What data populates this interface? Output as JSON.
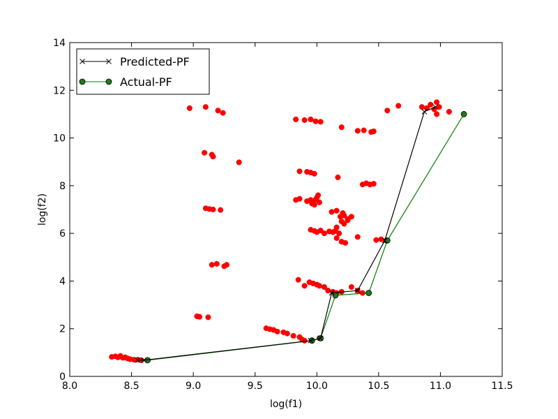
{
  "chart_data": {
    "type": "scatter",
    "title": "",
    "xlabel": "log(f1)",
    "ylabel": "log(f2)",
    "xlim": [
      8.0,
      11.5
    ],
    "ylim": [
      0,
      14
    ],
    "xticks": [
      "8.0",
      "8.5",
      "9.0",
      "9.5",
      "10.0",
      "10.5",
      "11.0",
      "11.5"
    ],
    "yticks": [
      "0",
      "2",
      "4",
      "6",
      "8",
      "10",
      "12",
      "14"
    ],
    "grid": false,
    "legend_position": "top-left",
    "colors": {
      "scatter": "#ff0000",
      "predicted": "#000000",
      "actual": "#007f00",
      "actual_marker": "#1f7a1f"
    },
    "series": [
      {
        "name": "Predicted-PF",
        "style": "line-x-marker",
        "points": [
          [
            8.55,
            0.68
          ],
          [
            8.6,
            0.68
          ],
          [
            9.95,
            1.5
          ],
          [
            10.03,
            1.6
          ],
          [
            10.12,
            3.5
          ],
          [
            10.33,
            3.6
          ],
          [
            10.55,
            5.7
          ],
          [
            10.87,
            11.1
          ],
          [
            10.96,
            11.3
          ]
        ]
      },
      {
        "name": "Actual-PF",
        "style": "line-circle-marker",
        "points": [
          [
            8.63,
            0.68
          ],
          [
            9.96,
            1.5
          ],
          [
            10.03,
            1.6
          ],
          [
            10.15,
            3.4
          ],
          [
            10.42,
            3.5
          ],
          [
            10.57,
            5.7
          ],
          [
            11.19,
            11.0
          ]
        ]
      },
      {
        "name": "",
        "style": "scatter",
        "points": [
          [
            8.34,
            0.82
          ],
          [
            8.37,
            0.84
          ],
          [
            8.39,
            0.8
          ],
          [
            8.41,
            0.86
          ],
          [
            8.43,
            0.78
          ],
          [
            8.45,
            0.8
          ],
          [
            8.47,
            0.75
          ],
          [
            8.49,
            0.72
          ],
          [
            8.52,
            0.7
          ],
          [
            8.55,
            0.7
          ],
          [
            8.58,
            0.68
          ],
          [
            9.03,
            2.52
          ],
          [
            9.05,
            2.5
          ],
          [
            9.12,
            2.48
          ],
          [
            9.15,
            4.68
          ],
          [
            9.19,
            4.72
          ],
          [
            9.25,
            4.62
          ],
          [
            9.27,
            4.68
          ],
          [
            9.1,
            7.05
          ],
          [
            9.13,
            7.02
          ],
          [
            9.16,
            7.0
          ],
          [
            9.22,
            6.98
          ],
          [
            9.09,
            9.38
          ],
          [
            9.15,
            9.3
          ],
          [
            9.16,
            9.22
          ],
          [
            9.37,
            8.98
          ],
          [
            8.97,
            11.25
          ],
          [
            9.1,
            11.3
          ],
          [
            9.2,
            11.15
          ],
          [
            9.24,
            11.05
          ],
          [
            9.59,
            2.02
          ],
          [
            9.62,
            1.98
          ],
          [
            9.65,
            1.95
          ],
          [
            9.68,
            1.88
          ],
          [
            9.73,
            1.85
          ],
          [
            9.76,
            1.8
          ],
          [
            9.81,
            1.7
          ],
          [
            9.86,
            1.65
          ],
          [
            9.88,
            1.55
          ],
          [
            9.9,
            1.5
          ],
          [
            9.96,
            1.52
          ],
          [
            10.02,
            1.6
          ],
          [
            9.85,
            4.05
          ],
          [
            9.9,
            3.8
          ],
          [
            9.94,
            3.95
          ],
          [
            9.97,
            3.9
          ],
          [
            10.0,
            3.85
          ],
          [
            10.02,
            3.8
          ],
          [
            10.06,
            3.75
          ],
          [
            10.09,
            3.6
          ],
          [
            10.13,
            3.55
          ],
          [
            10.16,
            3.5
          ],
          [
            10.2,
            3.55
          ],
          [
            10.28,
            3.75
          ],
          [
            10.33,
            3.6
          ],
          [
            10.37,
            3.5
          ],
          [
            10.16,
            5.8
          ],
          [
            10.2,
            5.65
          ],
          [
            10.23,
            5.6
          ],
          [
            10.33,
            5.85
          ],
          [
            10.48,
            5.72
          ],
          [
            10.52,
            5.75
          ],
          [
            10.56,
            5.7
          ],
          [
            9.95,
            6.15
          ],
          [
            9.98,
            6.1
          ],
          [
            10.0,
            6.05
          ],
          [
            10.03,
            6.12
          ],
          [
            10.06,
            6.0
          ],
          [
            10.1,
            6.08
          ],
          [
            10.13,
            6.05
          ],
          [
            10.15,
            6.1
          ],
          [
            10.18,
            6.0
          ],
          [
            10.16,
            6.25
          ],
          [
            10.2,
            6.5
          ],
          [
            10.22,
            6.4
          ],
          [
            10.25,
            6.55
          ],
          [
            10.12,
            6.9
          ],
          [
            10.16,
            6.95
          ],
          [
            10.19,
            6.7
          ],
          [
            10.22,
            6.75
          ],
          [
            10.25,
            6.6
          ],
          [
            10.28,
            6.7
          ],
          [
            10.21,
            6.85
          ],
          [
            9.83,
            7.4
          ],
          [
            9.86,
            7.45
          ],
          [
            9.92,
            7.35
          ],
          [
            9.95,
            7.4
          ],
          [
            9.97,
            7.3
          ],
          [
            9.99,
            7.42
          ],
          [
            10.0,
            7.5
          ],
          [
            10.02,
            7.3
          ],
          [
            9.98,
            7.2
          ],
          [
            10.01,
            7.6
          ],
          [
            9.96,
            7.25
          ],
          [
            9.86,
            8.6
          ],
          [
            9.92,
            8.58
          ],
          [
            9.95,
            8.55
          ],
          [
            9.98,
            8.5
          ],
          [
            10.17,
            8.35
          ],
          [
            10.37,
            8.05
          ],
          [
            10.4,
            8.1
          ],
          [
            10.43,
            8.05
          ],
          [
            10.46,
            8.08
          ],
          [
            9.83,
            10.78
          ],
          [
            9.9,
            10.75
          ],
          [
            9.95,
            10.78
          ],
          [
            9.99,
            10.7
          ],
          [
            10.03,
            10.68
          ],
          [
            10.2,
            10.45
          ],
          [
            10.33,
            10.3
          ],
          [
            10.38,
            10.32
          ],
          [
            10.44,
            10.25
          ],
          [
            10.46,
            10.28
          ],
          [
            10.57,
            11.15
          ],
          [
            10.66,
            11.35
          ],
          [
            10.85,
            11.3
          ],
          [
            10.89,
            11.25
          ],
          [
            10.92,
            11.4
          ],
          [
            10.95,
            11.2
          ],
          [
            10.97,
            11.5
          ],
          [
            10.99,
            11.3
          ],
          [
            10.97,
            11.0
          ],
          [
            11.07,
            11.1
          ]
        ]
      }
    ]
  }
}
